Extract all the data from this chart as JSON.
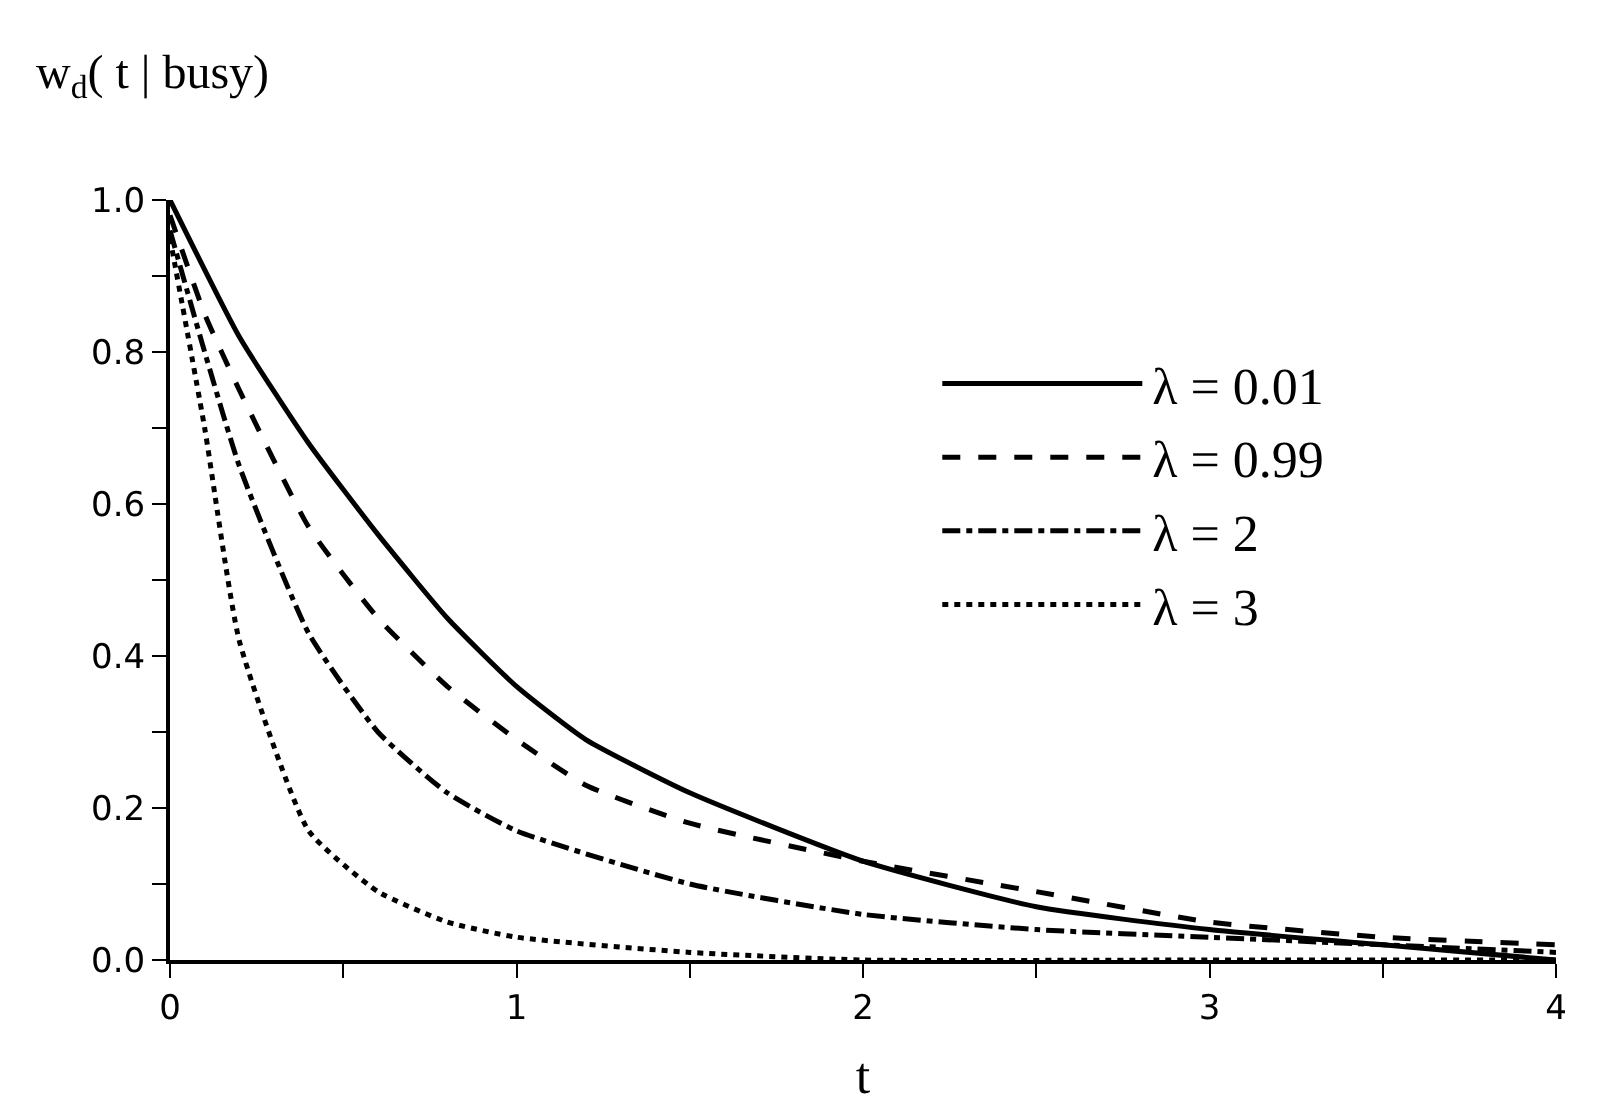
{
  "chart_data": {
    "type": "line",
    "ylabel": "w$_{d}$( t | busy)",
    "xlabel": "t",
    "xlim": [
      0,
      4
    ],
    "ylim": [
      0,
      1
    ],
    "xticks": [
      0,
      {
        "value": 0.5,
        "label": null
      },
      1,
      {
        "value": 1.5,
        "label": null
      },
      2,
      {
        "value": 2.5,
        "label": null
      },
      3,
      {
        "value": 3.5,
        "label": null
      },
      4
    ],
    "yticks": [
      {
        "value": 0,
        "label": "0.0"
      },
      {
        "value": 0.1,
        "label": null
      },
      0.2,
      {
        "value": 0.3,
        "label": null
      },
      0.4,
      {
        "value": 0.5,
        "label": null
      },
      0.6,
      {
        "value": 0.7,
        "label": null
      },
      0.8,
      {
        "value": 0.9,
        "label": null
      },
      {
        "value": 1,
        "label": "1.0"
      }
    ],
    "legend": "top right",
    "marker": "none",
    "series": [
      {
        "name": "λ = 0.01",
        "color": "#000000",
        "line_style": "solid",
        "x": [
          0,
          0.2,
          0.4,
          0.6,
          0.8,
          1,
          1.2,
          1.5,
          2,
          2.5,
          3,
          3.5,
          4
        ],
        "values": [
          1.0,
          0.82,
          0.68,
          0.56,
          0.45,
          0.36,
          0.29,
          0.22,
          0.13,
          0.07,
          0.04,
          0.02,
          0.0
        ]
      },
      {
        "name": "λ = 0.99",
        "color": "#000000",
        "line_style": "dashed",
        "x": [
          0,
          0.1,
          0.2,
          0.4,
          0.6,
          0.8,
          1,
          1.2,
          1.5,
          2,
          2.5,
          3,
          3.5,
          4
        ],
        "values": [
          0.98,
          0.85,
          0.75,
          0.57,
          0.45,
          0.36,
          0.29,
          0.23,
          0.18,
          0.13,
          0.09,
          0.05,
          0.03,
          0.02
        ]
      },
      {
        "name": "λ = 2",
        "color": "#000000",
        "line_style": "dashdot",
        "x": [
          0,
          0.1,
          0.2,
          0.4,
          0.6,
          0.8,
          1,
          1.5,
          2,
          2.5,
          3,
          3.5,
          4
        ],
        "values": [
          0.96,
          0.8,
          0.65,
          0.43,
          0.3,
          0.22,
          0.17,
          0.1,
          0.06,
          0.04,
          0.03,
          0.02,
          0.01
        ]
      },
      {
        "name": "λ = 3",
        "color": "#000000",
        "line_style": "dotted",
        "x": [
          0,
          0.1,
          0.2,
          0.4,
          0.6,
          0.8,
          1,
          1.5,
          2,
          3,
          4
        ],
        "values": [
          0.95,
          0.7,
          0.42,
          0.17,
          0.09,
          0.05,
          0.03,
          0.01,
          0.0,
          0.0,
          0.0
        ]
      }
    ]
  }
}
